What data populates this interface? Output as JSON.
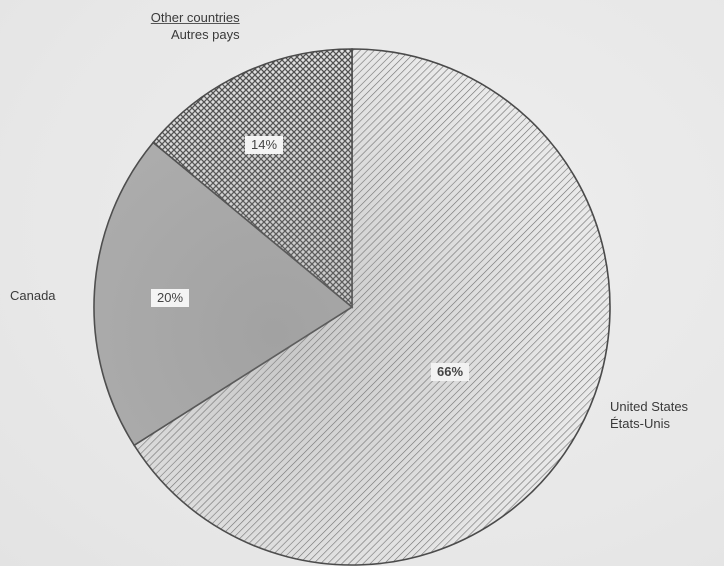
{
  "chart_data": {
    "type": "pie",
    "slices": [
      {
        "label_en": "United States",
        "label_fr": "États-Unis",
        "value": 66,
        "value_label": "66%",
        "pattern": "diagonal-hatch"
      },
      {
        "label_en": "Canada",
        "label_fr": "",
        "value": 20,
        "value_label": "20%",
        "pattern": "solid-grey"
      },
      {
        "label_en": "Other countries",
        "label_fr": "Autres pays",
        "value": 14,
        "value_label": "14%",
        "pattern": "crosshatch"
      }
    ],
    "start_angle_deg": 0,
    "direction": "clockwise-from-top",
    "title": "",
    "legend": "none (direct labels)"
  },
  "colors": {
    "background": "#ebebeb",
    "outline": "#4a4a4a",
    "canada_fill": "#b0b0b0",
    "hatch_line": "#6a6a6a"
  }
}
